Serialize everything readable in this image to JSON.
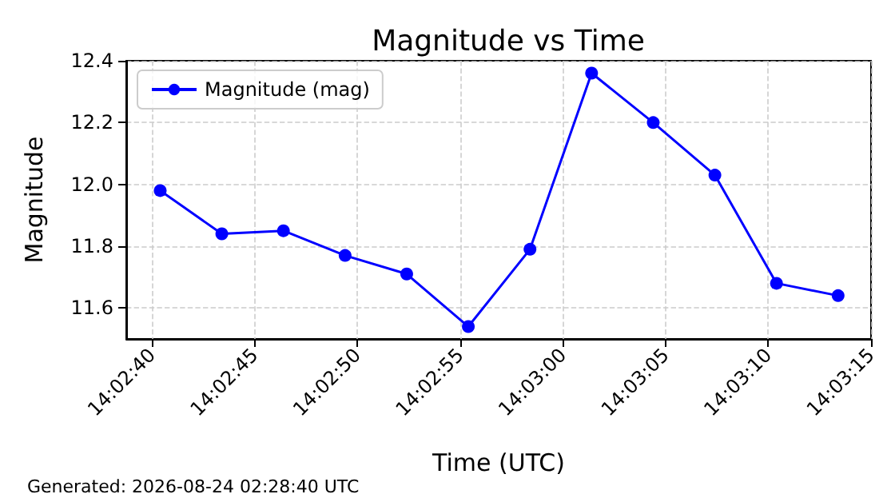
{
  "chart_data": {
    "type": "line",
    "title": "Magnitude vs Time",
    "xlabel": "Time (UTC)",
    "ylabel": "Magnitude",
    "annotations": [
      "Generated: 2026-08-24 02:28:40 UTC"
    ],
    "x": [
      14.044556,
      14.045389,
      14.046222,
      14.047056,
      14.047889,
      14.048722,
      14.049556,
      14.050389,
      14.051222,
      14.052056,
      14.052889,
      14.053722
    ],
    "series": [
      {
        "name": "Magnitude (mag)",
        "color": "#0000ff",
        "values": [
          11.98,
          11.84,
          11.85,
          11.77,
          11.71,
          11.54,
          11.79,
          12.36,
          12.2,
          12.03,
          11.68,
          11.64
        ]
      }
    ],
    "xlim": [
      14.044097,
      14.054167
    ],
    "xticks": [
      {
        "value": 14.044444,
        "label": "14:02:40"
      },
      {
        "value": 14.045833,
        "label": "14:02:45"
      },
      {
        "value": 14.047222,
        "label": "14:02:50"
      },
      {
        "value": 14.048611,
        "label": "14:02:55"
      },
      {
        "value": 14.05,
        "label": "14:03:00"
      },
      {
        "value": 14.051389,
        "label": "14:03:05"
      },
      {
        "value": 14.052778,
        "label": "14:03:10"
      },
      {
        "value": 14.054167,
        "label": "14:03:15"
      }
    ],
    "ylim": [
      11.5,
      12.4
    ],
    "yticks": [
      {
        "value": 11.6,
        "label": "11.6"
      },
      {
        "value": 11.8,
        "label": "11.8"
      },
      {
        "value": 12.0,
        "label": "12.0"
      },
      {
        "value": 12.2,
        "label": "12.2"
      },
      {
        "value": 12.4,
        "label": "12.4"
      }
    ],
    "grid": true,
    "legend": "top left",
    "marker": "circle",
    "line_style": "solid"
  }
}
